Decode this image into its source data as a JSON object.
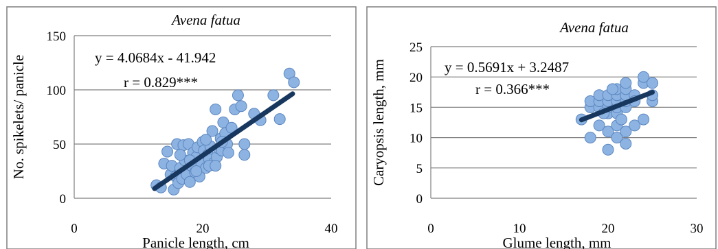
{
  "chart_data": [
    {
      "type": "scatter",
      "title": "Avena fatua",
      "xlabel": "Panicle length, cm",
      "ylabel": "No. spikelets/ panicle",
      "xlim": [
        0,
        40
      ],
      "ylim": [
        0,
        150
      ],
      "xticks": [
        "0",
        "20",
        "40"
      ],
      "yticks": [
        "0",
        "50",
        "100",
        "150"
      ],
      "grid": "horizontal",
      "annotations": [
        "y = 4.0684x - 41.942",
        "r = 0.829***"
      ],
      "trendline": {
        "slope": 4.0684,
        "intercept": -41.942,
        "x_range": [
          12.5,
          34
        ]
      },
      "colors": {
        "point_fill": "#8db3e2",
        "point_stroke": "#5b86bf",
        "trendline": "#17375e",
        "frame": "#7f7f7f",
        "grid": "#7f7f7f"
      },
      "points": [
        [
          12.8,
          12
        ],
        [
          13.5,
          10
        ],
        [
          14.0,
          32
        ],
        [
          14.5,
          43
        ],
        [
          15.0,
          22
        ],
        [
          15.2,
          30
        ],
        [
          15.5,
          8
        ],
        [
          15.8,
          20
        ],
        [
          16.0,
          50
        ],
        [
          16.2,
          14
        ],
        [
          16.5,
          28
        ],
        [
          16.8,
          18
        ],
        [
          17.0,
          49
        ],
        [
          17.2,
          35
        ],
        [
          17.5,
          22
        ],
        [
          17.8,
          50
        ],
        [
          18.0,
          15
        ],
        [
          18.2,
          30
        ],
        [
          18.5,
          42
        ],
        [
          18.8,
          24
        ],
        [
          19.0,
          38
        ],
        [
          19.2,
          47
        ],
        [
          19.5,
          20
        ],
        [
          19.8,
          32
        ],
        [
          20.0,
          52
        ],
        [
          20.2,
          44
        ],
        [
          20.5,
          28
        ],
        [
          20.8,
          40
        ],
        [
          21.0,
          36
        ],
        [
          21.2,
          48
        ],
        [
          21.5,
          62
        ],
        [
          21.8,
          33
        ],
        [
          22.0,
          82
        ],
        [
          22.2,
          38
        ],
        [
          22.5,
          46
        ],
        [
          22.8,
          55
        ],
        [
          23.0,
          44
        ],
        [
          23.2,
          70
        ],
        [
          23.5,
          60
        ],
        [
          23.8,
          50
        ],
        [
          24.0,
          42
        ],
        [
          24.5,
          65
        ],
        [
          25.0,
          82
        ],
        [
          25.5,
          95
        ],
        [
          26.0,
          85
        ],
        [
          26.5,
          40
        ],
        [
          26.5,
          50
        ],
        [
          28.0,
          78
        ],
        [
          29.0,
          72
        ],
        [
          31.0,
          95
        ],
        [
          32.0,
          73
        ],
        [
          33.5,
          115
        ],
        [
          34.2,
          107
        ],
        [
          20.5,
          54
        ],
        [
          18.0,
          35
        ],
        [
          16.5,
          40
        ],
        [
          19.0,
          25
        ],
        [
          21.0,
          30
        ],
        [
          23.0,
          52
        ],
        [
          22.0,
          30
        ]
      ]
    },
    {
      "type": "scatter",
      "title": "Avena fatua",
      "xlabel": "Glume length, mm",
      "ylabel": "Caryopsis length, mm",
      "xlim": [
        0,
        30
      ],
      "ylim": [
        0,
        25
      ],
      "xticks": [
        "0",
        "10",
        "20",
        "30"
      ],
      "yticks": [
        "0",
        "5",
        "10",
        "15",
        "20",
        "25"
      ],
      "grid": "horizontal",
      "annotations": [
        "y = 0.5691x + 3.2487",
        "r = 0.366***"
      ],
      "trendline": {
        "slope": 0.5691,
        "intercept": 3.2487,
        "x_range": [
          17,
          25
        ]
      },
      "colors": {
        "point_fill": "#8db3e2",
        "point_stroke": "#5b86bf",
        "trendline": "#17375e",
        "frame": "#7f7f7f",
        "grid": "#7f7f7f"
      },
      "points": [
        [
          17,
          13
        ],
        [
          18,
          10
        ],
        [
          18,
          15
        ],
        [
          18,
          16
        ],
        [
          19,
          12
        ],
        [
          19,
          15
        ],
        [
          19,
          16
        ],
        [
          19,
          17
        ],
        [
          20,
          8
        ],
        [
          20,
          11
        ],
        [
          20,
          14
        ],
        [
          20,
          15
        ],
        [
          20,
          16
        ],
        [
          20,
          17
        ],
        [
          21,
          10
        ],
        [
          21,
          12
        ],
        [
          21,
          14
        ],
        [
          21,
          15
        ],
        [
          21,
          16
        ],
        [
          21,
          17
        ],
        [
          21,
          18
        ],
        [
          22,
          9
        ],
        [
          22,
          11
        ],
        [
          22,
          15
        ],
        [
          22,
          16
        ],
        [
          22,
          17
        ],
        [
          22,
          18
        ],
        [
          22,
          19
        ],
        [
          23,
          12
        ],
        [
          23,
          17
        ],
        [
          24,
          13
        ],
        [
          24,
          19
        ],
        [
          24,
          20
        ],
        [
          25,
          16
        ],
        [
          25,
          17
        ],
        [
          25,
          19
        ],
        [
          19.5,
          14
        ],
        [
          20.5,
          18
        ],
        [
          21.5,
          13
        ],
        [
          23,
          16
        ]
      ]
    }
  ]
}
